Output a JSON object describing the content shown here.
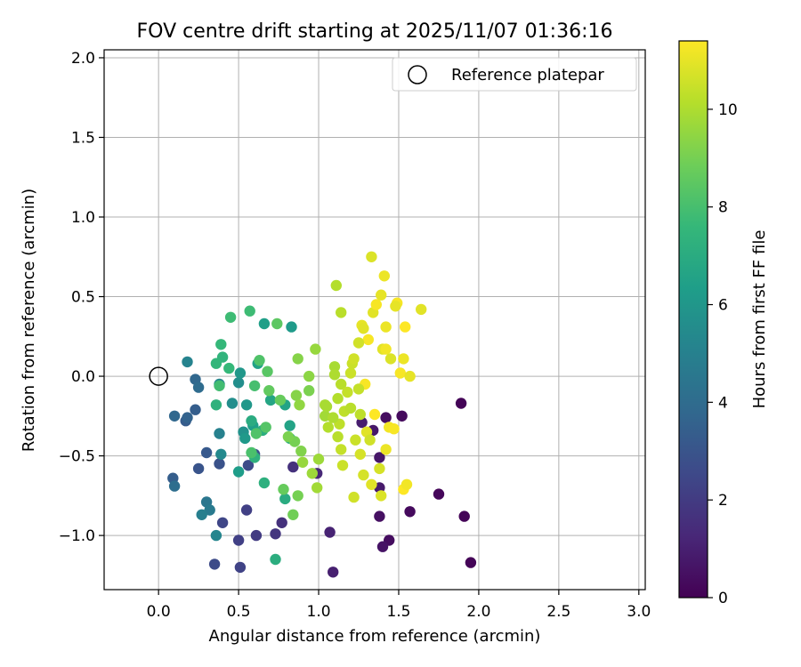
{
  "chart_data": {
    "type": "scatter",
    "title": "FOV centre drift starting at 2025/11/07 01:36:16",
    "xlabel": "Angular distance from reference (arcmin)",
    "ylabel": "Rotation from reference (arcmin)",
    "xlim": [
      -0.34,
      3.04
    ],
    "ylim": [
      -1.34,
      2.05
    ],
    "xticks": [
      0.0,
      0.5,
      1.0,
      1.5,
      2.0,
      2.5,
      3.0
    ],
    "xtick_labels": [
      "0.0",
      "0.5",
      "1.0",
      "1.5",
      "2.0",
      "2.5",
      "3.0"
    ],
    "yticks": [
      -1.0,
      -0.5,
      0.0,
      0.5,
      1.0,
      1.5,
      2.0
    ],
    "ytick_labels": [
      "−1.0",
      "−0.5",
      "0.0",
      "0.5",
      "1.0",
      "1.5",
      "2.0"
    ],
    "grid": true,
    "legend": {
      "position": "top-right",
      "entries": [
        {
          "label": "Reference platepar",
          "marker": "open-circle",
          "x": 0.0,
          "y": 0.0
        }
      ]
    },
    "colorbar": {
      "label": "Hours from first FF file",
      "colormap": "viridis",
      "range": [
        0,
        11.4
      ],
      "ticks": [
        0,
        2,
        4,
        6,
        8,
        10
      ],
      "tick_labels": [
        "0",
        "2",
        "4",
        "6",
        "8",
        "10"
      ],
      "colors": [
        "#440154",
        "#482878",
        "#3e4989",
        "#31688e",
        "#26828e",
        "#1f9e89",
        "#35b779",
        "#6ece58",
        "#b5de2b",
        "#fde725"
      ]
    },
    "series": [
      {
        "points": [
          [
            1.89,
            -0.17,
            0.1
          ],
          [
            1.91,
            -0.88,
            0.1
          ],
          [
            1.95,
            -1.17,
            0.1
          ],
          [
            1.75,
            -0.74,
            0.2
          ],
          [
            1.57,
            -0.85,
            0.3
          ],
          [
            1.52,
            -0.25,
            0.3
          ],
          [
            1.42,
            -0.26,
            0.4
          ],
          [
            1.44,
            -1.03,
            0.4
          ],
          [
            1.4,
            -1.07,
            0.6
          ],
          [
            1.38,
            -0.88,
            0.5
          ],
          [
            1.34,
            -0.34,
            0.7
          ],
          [
            1.38,
            -0.7,
            0.8
          ],
          [
            1.27,
            -0.29,
            0.9
          ],
          [
            1.38,
            -0.51,
            0.7
          ],
          [
            1.09,
            -1.23,
            1.0
          ],
          [
            1.07,
            -0.98,
            1.1
          ],
          [
            0.99,
            -0.61,
            1.3
          ],
          [
            0.84,
            -0.57,
            1.6
          ],
          [
            0.77,
            -0.92,
            1.6
          ],
          [
            0.73,
            -0.99,
            1.8
          ],
          [
            0.61,
            -1.0,
            2.0
          ],
          [
            0.55,
            -0.84,
            2.2
          ],
          [
            0.5,
            -1.03,
            2.2
          ],
          [
            0.51,
            -1.2,
            2.3
          ],
          [
            0.4,
            -0.92,
            2.4
          ],
          [
            0.35,
            -1.18,
            2.6
          ],
          [
            0.56,
            -0.56,
            2.6
          ],
          [
            0.6,
            -0.49,
            2.8
          ],
          [
            0.38,
            -0.55,
            2.9
          ],
          [
            0.25,
            -0.58,
            3.0
          ],
          [
            0.3,
            -0.48,
            3.2
          ],
          [
            0.09,
            -0.64,
            3.4
          ],
          [
            0.17,
            -0.28,
            3.3
          ],
          [
            0.23,
            -0.21,
            3.4
          ],
          [
            0.18,
            -0.26,
            3.6
          ],
          [
            0.1,
            -0.25,
            3.8
          ],
          [
            0.23,
            -0.02,
            3.8
          ],
          [
            0.25,
            -0.07,
            4.0
          ],
          [
            0.1,
            -0.69,
            4.1
          ],
          [
            0.3,
            -0.79,
            4.5
          ],
          [
            0.32,
            -0.84,
            4.7
          ],
          [
            0.27,
            -0.87,
            4.9
          ],
          [
            0.36,
            -1.0,
            5.2
          ],
          [
            0.38,
            -0.36,
            5.0
          ],
          [
            0.18,
            0.09,
            5.1
          ],
          [
            0.38,
            -0.05,
            5.3
          ],
          [
            0.39,
            -0.49,
            5.4
          ],
          [
            0.46,
            -0.17,
            5.6
          ],
          [
            0.5,
            -0.04,
            5.6
          ],
          [
            0.53,
            -0.35,
            5.8
          ],
          [
            0.51,
            0.02,
            6.0
          ],
          [
            0.55,
            -0.18,
            6.0
          ],
          [
            0.54,
            -0.39,
            6.1
          ],
          [
            0.5,
            -0.6,
            6.3
          ],
          [
            0.59,
            -0.31,
            6.4
          ],
          [
            0.62,
            0.08,
            6.5
          ],
          [
            0.66,
            0.33,
            6.4
          ],
          [
            0.7,
            -0.15,
            6.7
          ],
          [
            0.79,
            -0.18,
            6.6
          ],
          [
            0.83,
            0.31,
            6.2
          ],
          [
            0.82,
            -0.31,
            6.6
          ],
          [
            0.82,
            -0.39,
            6.9
          ],
          [
            0.79,
            -0.77,
            7.0
          ],
          [
            0.73,
            -1.15,
            7.1
          ],
          [
            0.66,
            -0.67,
            7.2
          ],
          [
            0.6,
            -0.51,
            7.3
          ],
          [
            0.58,
            -0.28,
            7.0
          ],
          [
            0.65,
            -0.34,
            7.1
          ],
          [
            0.36,
            -0.18,
            7.3
          ],
          [
            0.4,
            0.12,
            7.4
          ],
          [
            0.36,
            0.08,
            7.5
          ],
          [
            0.39,
            0.2,
            7.6
          ],
          [
            0.44,
            0.05,
            7.6
          ],
          [
            0.45,
            0.37,
            7.8
          ],
          [
            0.57,
            0.41,
            7.8
          ],
          [
            0.38,
            -0.06,
            7.9
          ],
          [
            0.6,
            -0.06,
            8.0
          ],
          [
            0.58,
            -0.48,
            8.1
          ],
          [
            0.61,
            -0.36,
            8.2
          ],
          [
            0.63,
            0.1,
            8.2
          ],
          [
            0.67,
            -0.32,
            8.3
          ],
          [
            0.68,
            0.03,
            8.4
          ],
          [
            0.74,
            0.33,
            8.5
          ],
          [
            0.69,
            -0.09,
            8.6
          ],
          [
            0.76,
            -0.15,
            8.7
          ],
          [
            0.78,
            -0.71,
            8.7
          ],
          [
            0.84,
            -0.87,
            8.9
          ],
          [
            0.87,
            -0.75,
            9.0
          ],
          [
            0.85,
            -0.41,
            9.0
          ],
          [
            0.81,
            -0.38,
            9.1
          ],
          [
            0.89,
            -0.47,
            9.2
          ],
          [
            0.94,
            -0.09,
            9.1
          ],
          [
            0.87,
            0.11,
            9.3
          ],
          [
            0.94,
            0.0,
            9.4
          ],
          [
            0.86,
            -0.12,
            9.3
          ],
          [
            0.88,
            -0.18,
            9.5
          ],
          [
            0.9,
            -0.54,
            9.6
          ],
          [
            0.96,
            -0.61,
            9.7
          ],
          [
            0.99,
            -0.7,
            9.8
          ],
          [
            0.98,
            0.17,
            9.6
          ],
          [
            1.0,
            -0.52,
            9.7
          ],
          [
            1.04,
            -0.25,
            9.8
          ],
          [
            1.05,
            -0.19,
            9.9
          ],
          [
            1.1,
            0.06,
            9.9
          ],
          [
            1.1,
            0.01,
            10.0
          ],
          [
            1.11,
            0.57,
            10.1
          ],
          [
            1.14,
            0.4,
            10.2
          ],
          [
            1.12,
            -0.14,
            10.1
          ],
          [
            1.14,
            -0.05,
            10.2
          ],
          [
            1.13,
            -0.3,
            10.3
          ],
          [
            1.14,
            -0.46,
            10.4
          ],
          [
            1.15,
            -0.56,
            10.5
          ],
          [
            1.18,
            -0.1,
            10.4
          ],
          [
            1.21,
            0.08,
            10.5
          ],
          [
            1.22,
            0.11,
            10.6
          ],
          [
            1.23,
            -0.4,
            10.5
          ],
          [
            1.22,
            -0.76,
            10.6
          ],
          [
            1.26,
            -0.49,
            10.7
          ],
          [
            1.28,
            -0.62,
            10.7
          ],
          [
            1.3,
            -0.35,
            10.9
          ],
          [
            1.33,
            0.75,
            10.8
          ],
          [
            1.34,
            0.4,
            10.9
          ],
          [
            1.4,
            0.17,
            10.9
          ],
          [
            1.39,
            0.51,
            11.0
          ],
          [
            1.41,
            0.63,
            11.1
          ],
          [
            1.42,
            0.31,
            11.1
          ],
          [
            1.42,
            0.17,
            11.2
          ],
          [
            1.44,
            -0.32,
            11.2
          ],
          [
            1.47,
            -0.33,
            11.3
          ],
          [
            1.49,
            0.46,
            11.3
          ],
          [
            1.51,
            0.02,
            11.3
          ],
          [
            1.53,
            -0.71,
            11.4
          ],
          [
            1.29,
            -0.05,
            11.3
          ],
          [
            1.35,
            -0.24,
            11.4
          ],
          [
            1.54,
            0.31,
            11.4
          ],
          [
            1.31,
            0.23,
            11.3
          ],
          [
            1.27,
            0.32,
            11.0
          ],
          [
            1.25,
            0.21,
            10.6
          ],
          [
            1.2,
            0.02,
            10.5
          ],
          [
            1.16,
            -0.22,
            10.3
          ],
          [
            1.06,
            -0.32,
            10.1
          ],
          [
            1.25,
            -0.08,
            10.4
          ],
          [
            1.32,
            -0.4,
            10.6
          ],
          [
            1.38,
            -0.58,
            10.7
          ],
          [
            1.39,
            -0.75,
            10.8
          ],
          [
            1.33,
            -0.68,
            10.9
          ],
          [
            1.45,
            0.11,
            10.8
          ],
          [
            1.48,
            0.44,
            11.0
          ],
          [
            1.53,
            0.11,
            11.1
          ],
          [
            1.64,
            0.42,
            10.9
          ],
          [
            1.57,
            0.0,
            11.0
          ],
          [
            1.55,
            -0.68,
            11.2
          ],
          [
            1.42,
            -0.46,
            11.1
          ],
          [
            1.36,
            0.45,
            11.3
          ],
          [
            1.28,
            0.3,
            10.9
          ],
          [
            1.2,
            -0.2,
            10.2
          ],
          [
            1.09,
            -0.26,
            10.0
          ],
          [
            1.04,
            -0.18,
            9.9
          ],
          [
            1.12,
            -0.38,
            10.2
          ],
          [
            1.26,
            -0.24,
            10.3
          ]
        ]
      }
    ]
  }
}
